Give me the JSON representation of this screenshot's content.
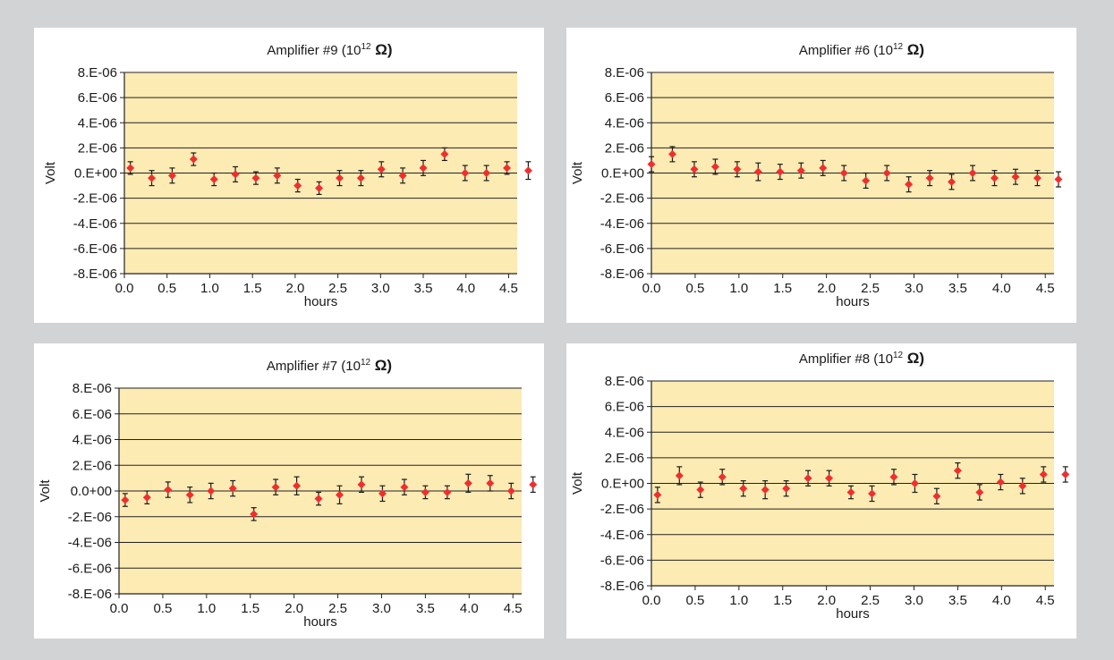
{
  "chart_data": [
    {
      "type": "scatter",
      "title": "Amplifier #9 (10",
      "title_exp": "12",
      "title_unit": "Ω)",
      "xlabel": "hours",
      "ylabel": "Volt",
      "xlim": [
        0,
        4.6
      ],
      "ylim": [
        -8e-06,
        8e-06
      ],
      "x_ticks": [
        "0.0",
        "0.5",
        "1.0",
        "1.5",
        "2.0",
        "2.5",
        "3.0",
        "3.5",
        "4.0",
        "4.5"
      ],
      "y_ticks": [
        "8.E-06",
        "6.E-06",
        "4.E-06",
        "2.E-06",
        "0.E+00",
        "-2.E-06",
        "-4.E-06",
        "-6.E-06",
        "-8.E-06"
      ],
      "grid": true,
      "plot_bg": "#fdebb4",
      "marker_color": "#ee2f2f",
      "errorbar_color": "#1a1a1a",
      "series": [
        {
          "x": [
            0.07,
            0.32,
            0.56,
            0.81,
            1.05,
            1.3,
            1.54,
            1.79,
            2.03,
            2.28,
            2.52,
            2.77,
            3.01,
            3.26,
            3.5,
            3.75,
            3.99,
            4.24,
            4.48,
            4.73
          ],
          "y": [
            4e-07,
            -4e-07,
            -2e-07,
            1.1e-06,
            -5e-07,
            -1e-07,
            -4e-07,
            -2e-07,
            -1e-06,
            -1.2e-06,
            -4e-07,
            -4e-07,
            3e-07,
            -2e-07,
            4e-07,
            1.5e-06,
            0,
            0,
            4e-07,
            2e-07
          ],
          "err": [
            5e-07,
            6e-07,
            6e-07,
            5e-07,
            5e-07,
            6e-07,
            5e-07,
            6e-07,
            5e-07,
            5e-07,
            6e-07,
            6e-07,
            6e-07,
            6e-07,
            6e-07,
            5e-07,
            6e-07,
            6e-07,
            5e-07,
            7e-07
          ]
        }
      ]
    },
    {
      "type": "scatter",
      "title": "Amplifier #6 (10",
      "title_exp": "12",
      "title_unit": "Ω)",
      "xlabel": "hours",
      "ylabel": "Volt",
      "xlim": [
        0,
        4.6
      ],
      "ylim": [
        -8e-06,
        8e-06
      ],
      "x_ticks": [
        "0.0",
        "0.5",
        "1.0",
        "1.5",
        "2.0",
        "2.5",
        "3.0",
        "3.5",
        "4.0",
        "4.5"
      ],
      "y_ticks": [
        "8.E-06",
        "6.E-06",
        "4.E-06",
        "2.E-06",
        "0.E+00",
        "-2.E-06",
        "-4.E-06",
        "-6.E-06",
        "-8.E-06"
      ],
      "grid": true,
      "plot_bg": "#fdebb4",
      "marker_color": "#ee2f2f",
      "errorbar_color": "#1a1a1a",
      "series": [
        {
          "x": [
            0.0,
            0.24,
            0.49,
            0.73,
            0.98,
            1.22,
            1.47,
            1.71,
            1.96,
            2.2,
            2.45,
            2.69,
            2.94,
            3.18,
            3.43,
            3.67,
            3.92,
            4.16,
            4.41,
            4.65
          ],
          "y": [
            7e-07,
            1.5e-06,
            3e-07,
            5e-07,
            3e-07,
            1e-07,
            1e-07,
            2e-07,
            4e-07,
            0,
            -6e-07,
            0,
            -9e-07,
            -4e-07,
            -7e-07,
            0,
            -4e-07,
            -3e-07,
            -4e-07,
            -5e-07
          ],
          "err": [
            6e-07,
            6e-07,
            6e-07,
            6e-07,
            6e-07,
            7e-07,
            6e-07,
            6e-07,
            6e-07,
            6e-07,
            6e-07,
            6e-07,
            6e-07,
            6e-07,
            6e-07,
            6e-07,
            6e-07,
            6e-07,
            6e-07,
            6e-07
          ]
        }
      ]
    },
    {
      "type": "scatter",
      "title": "Amplifier #7 (10",
      "title_exp": "12",
      "title_unit": "Ω)",
      "xlabel": "hours",
      "ylabel": "Volt",
      "xlim": [
        0,
        4.6
      ],
      "ylim": [
        -8e-06,
        8e-06
      ],
      "x_ticks": [
        "0.0",
        "0.5",
        "1.0",
        "1.5",
        "2.0",
        "2.5",
        "3.0",
        "3.5",
        "4.0",
        "4.5"
      ],
      "y_ticks": [
        "8.E-06",
        "6.E-06",
        "4.E-06",
        "2.E-06",
        "0.0+00",
        "-2.E-06",
        "-4.E-06",
        "-6.E-06",
        "-8.E-06"
      ],
      "grid": true,
      "plot_bg": "#fdebb4",
      "marker_color": "#ee2f2f",
      "errorbar_color": "#1a1a1a",
      "series": [
        {
          "x": [
            0.07,
            0.32,
            0.56,
            0.81,
            1.05,
            1.3,
            1.54,
            1.79,
            2.03,
            2.28,
            2.52,
            2.77,
            3.01,
            3.26,
            3.5,
            3.75,
            3.99,
            4.24,
            4.48,
            4.73
          ],
          "y": [
            -7e-07,
            -5e-07,
            1e-07,
            -3e-07,
            0,
            2e-07,
            -1.8e-06,
            3e-07,
            4e-07,
            -6e-07,
            -3e-07,
            5e-07,
            -2e-07,
            3e-07,
            -1e-07,
            -1e-07,
            6e-07,
            6e-07,
            0,
            5e-07
          ],
          "err": [
            5e-07,
            5e-07,
            6e-07,
            6e-07,
            6e-07,
            6e-07,
            5e-07,
            6e-07,
            7e-07,
            5e-07,
            7e-07,
            6e-07,
            6e-07,
            6e-07,
            5e-07,
            5e-07,
            7e-07,
            6e-07,
            6e-07,
            6e-07
          ]
        }
      ]
    },
    {
      "type": "scatter",
      "title": "Amplifier #8 (10",
      "title_exp": "12",
      "title_unit": "Ω)",
      "xlabel": "hours",
      "ylabel": "Volt",
      "xlim": [
        0,
        4.6
      ],
      "ylim": [
        -8e-06,
        8e-06
      ],
      "x_ticks": [
        "0.0",
        "0.5",
        "1.0",
        "1.5",
        "2.0",
        "2.5",
        "3.0",
        "3.5",
        "4.0",
        "4.5"
      ],
      "y_ticks": [
        "8.E-06",
        "6.E-06",
        "4.E-06",
        "2.E-06",
        "0.E+00",
        "-2.E-06",
        "-4.E-06",
        "-6.E-06",
        "-8.E-06"
      ],
      "grid": true,
      "plot_bg": "#fdebb4",
      "marker_color": "#ee2f2f",
      "errorbar_color": "#1a1a1a",
      "series": [
        {
          "x": [
            0.07,
            0.32,
            0.56,
            0.81,
            1.05,
            1.3,
            1.54,
            1.79,
            2.03,
            2.28,
            2.52,
            2.77,
            3.01,
            3.26,
            3.5,
            3.75,
            3.99,
            4.24,
            4.48,
            4.73
          ],
          "y": [
            -9e-07,
            6e-07,
            -5e-07,
            5e-07,
            -4e-07,
            -5e-07,
            -4e-07,
            4e-07,
            4e-07,
            -7e-07,
            -8e-07,
            5e-07,
            0,
            -1e-06,
            1e-06,
            -7e-07,
            1e-07,
            -2e-07,
            7e-07,
            7e-07
          ],
          "err": [
            6e-07,
            7e-07,
            6e-07,
            6e-07,
            6e-07,
            7e-07,
            6e-07,
            6e-07,
            6e-07,
            5e-07,
            6e-07,
            6e-07,
            7e-07,
            6e-07,
            6e-07,
            6e-07,
            6e-07,
            6e-07,
            6e-07,
            6e-07
          ]
        }
      ]
    }
  ]
}
